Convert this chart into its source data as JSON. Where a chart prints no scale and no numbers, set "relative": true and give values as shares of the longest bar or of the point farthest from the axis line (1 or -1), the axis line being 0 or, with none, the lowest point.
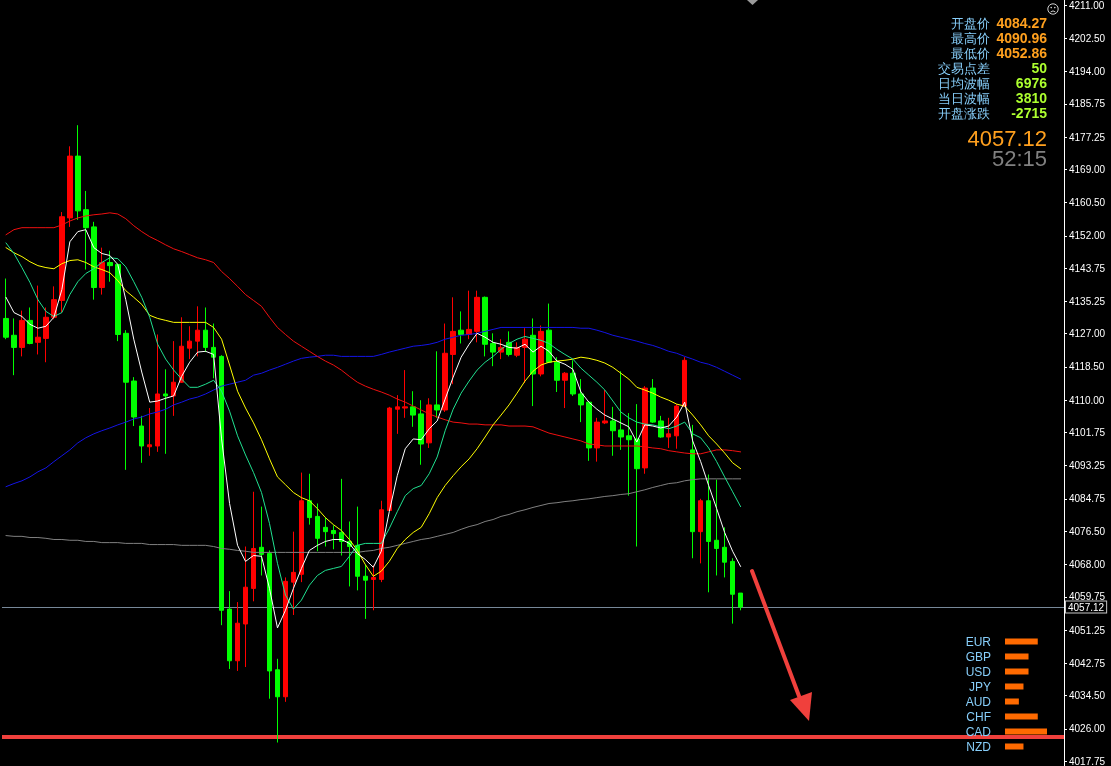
{
  "chart_data": [
    {
      "type": "candlestick",
      "categories": [
        null,
        null,
        null,
        null,
        null,
        null,
        null,
        null,
        null,
        null,
        null,
        null,
        null,
        null,
        null,
        null,
        null,
        null,
        null,
        null,
        null,
        null,
        null,
        null,
        null,
        null,
        null,
        null,
        null,
        null,
        null,
        null,
        null,
        null,
        null,
        null,
        null,
        null,
        null,
        null,
        null,
        null,
        null,
        null,
        null,
        null,
        null,
        null,
        null,
        null,
        null,
        null,
        null,
        null,
        null,
        null,
        null,
        null,
        null,
        null,
        null,
        null,
        null,
        null,
        null,
        null,
        null,
        null,
        null,
        null,
        null,
        null,
        null,
        null,
        null,
        null,
        null,
        null,
        null,
        null,
        null,
        null,
        null,
        null,
        null,
        null,
        null,
        null,
        null,
        null,
        null,
        null,
        null,
        null,
        null,
        null,
        null,
        null,
        null,
        null,
        null,
        null,
        null,
        null,
        null,
        null,
        null,
        null,
        null,
        null,
        null,
        null,
        null,
        null,
        null,
        null,
        null,
        null,
        null,
        null,
        null,
        null,
        null,
        null,
        null,
        null,
        null,
        null,
        null,
        null,
        null,
        null,
        null
      ],
      "series": [
        {
          "type": "line",
          "color": "#808080",
          "values": [
            4075.4,
            4075.2,
            4075.2,
            4074.9,
            4074.9,
            4074.7,
            4074.4,
            4074.4,
            4074.2,
            4074.2,
            4073.9,
            4073.9,
            4073.6,
            4073.6,
            4073.6,
            4073.4,
            4073.4,
            4073.4,
            4073.1,
            4073.1,
            4073.1,
            4073.1,
            4072.9,
            4072.9,
            4072.9,
            4072.9,
            4072.6,
            4072.1,
            4071.9,
            4071.6,
            4071.4,
            4071.1,
            4071.1,
            4071.1,
            4071.1,
            4071.1,
            4071.1,
            4071.1,
            4071.1,
            4071.1,
            4071.1,
            4071.1,
            4071.1,
            4071.1,
            4071.1,
            4071.4,
            4071.6,
            4072.1,
            4072.4,
            4072.9,
            4073.4,
            4073.9,
            4074.4,
            4074.7,
            4075.2,
            4075.7,
            4076.2,
            4077.0,
            4077.7,
            4078.2,
            4079.0,
            4079.5,
            4080.3,
            4080.8,
            4081.5,
            4082.0,
            4082.6,
            4083.1,
            4083.6,
            4083.8,
            4084.1,
            4084.3,
            4084.6,
            4084.8,
            4085.1,
            4085.4,
            4085.6,
            4085.9,
            4086.1,
            4086.6,
            4087.1,
            4087.7,
            4088.2,
            4088.7,
            4088.9,
            4089.4,
            4089.7,
            4089.9,
            4089.9,
            4089.9,
            4089.9,
            4089.9,
            4089.9,
            null,
            null,
            null,
            null,
            null,
            null,
            null,
            null,
            null,
            null,
            null,
            null,
            null,
            null,
            null,
            null,
            null,
            null,
            null,
            null,
            null,
            null,
            null,
            null,
            null,
            null,
            null,
            null,
            null,
            null,
            null,
            null,
            null,
            null,
            null,
            null,
            null,
            null,
            null,
            null
          ]
        },
        {
          "type": "line",
          "color": "#1414e6",
          "values": [
            4087.9,
            4088.7,
            4089.4,
            4090.4,
            4091.7,
            4092.7,
            4094.3,
            4095.8,
            4097.3,
            4099.1,
            4100.4,
            4101.4,
            4102.2,
            4102.9,
            4103.7,
            4104.4,
            4105.2,
            4105.7,
            4106.5,
            4107.0,
            4107.7,
            4108.8,
            4109.5,
            4110.3,
            4110.8,
            4111.6,
            4112.6,
            4113.6,
            4114.1,
            4114.6,
            4115.1,
            4116.4,
            4116.9,
            4117.7,
            4118.4,
            4119.2,
            4120.0,
            4120.7,
            4121.0,
            4121.2,
            4121.5,
            4121.5,
            4121.2,
            4121.2,
            4121.2,
            4121.2,
            4121.2,
            4121.7,
            4122.3,
            4122.8,
            4123.3,
            4123.8,
            4124.0,
            4124.3,
            4124.8,
            4125.6,
            4126.1,
            4126.6,
            4126.8,
            4127.1,
            4127.6,
            4128.1,
            4128.6,
            4128.6,
            4128.6,
            4128.6,
            4128.6,
            4128.6,
            4128.6,
            4128.6,
            4128.6,
            4128.6,
            4128.4,
            4128.4,
            4127.9,
            4127.3,
            4126.6,
            4126.1,
            4125.6,
            4125.1,
            4124.5,
            4124.0,
            4123.3,
            4122.5,
            4122.0,
            4121.2,
            4120.5,
            4119.7,
            4119.2,
            4118.4,
            4117.4,
            4116.4,
            4115.4,
            null,
            null,
            null,
            null,
            null,
            null,
            null,
            null,
            null,
            null,
            null,
            null,
            null,
            null,
            null,
            null,
            null,
            null,
            null,
            null,
            null,
            null,
            null,
            null,
            null,
            null,
            null,
            null,
            null,
            null,
            null,
            null,
            null,
            null,
            null,
            null,
            null,
            null,
            null,
            null
          ]
        },
        {
          "type": "line",
          "color": "#f01010",
          "values": [
            4152.3,
            4153.6,
            4154.1,
            4154.1,
            4154.1,
            4154.1,
            4154.1,
            4154.8,
            4155.8,
            4156.6,
            4157.1,
            4157.4,
            4157.6,
            4157.9,
            4157.6,
            4156.4,
            4154.6,
            4153.1,
            4151.8,
            4150.8,
            4149.7,
            4148.7,
            4148.0,
            4147.2,
            4146.4,
            4145.9,
            4145.2,
            4142.9,
            4141.1,
            4139.1,
            4137.0,
            4135.5,
            4134.0,
            4131.2,
            4128.6,
            4126.8,
            4125.1,
            4123.8,
            4122.5,
            4121.2,
            4120.0,
            4119.0,
            4117.7,
            4116.1,
            4114.6,
            4113.6,
            4112.8,
            4112.1,
            4111.3,
            4110.3,
            4109.5,
            4108.5,
            4107.5,
            4106.5,
            4105.7,
            4105.0,
            4104.4,
            4104.2,
            4103.9,
            4103.9,
            4103.7,
            4103.7,
            4103.7,
            4103.4,
            4103.4,
            4103.4,
            4103.2,
            4102.4,
            4101.6,
            4101.1,
            4100.6,
            4100.1,
            4099.6,
            4098.8,
            4098.6,
            4098.3,
            4098.3,
            4098.3,
            4098.3,
            4098.3,
            4098.1,
            4097.8,
            4097.6,
            4097.1,
            4096.8,
            4096.5,
            4096.3,
            4096.3,
            4096.8,
            4097.3,
            4097.3,
            4097.1,
            4096.8,
            null,
            null,
            null,
            null,
            null,
            null,
            null,
            null,
            null,
            null,
            null,
            null,
            null,
            null,
            null,
            null,
            null,
            null,
            null,
            null,
            null,
            null,
            null,
            null,
            null,
            null,
            null,
            null,
            null,
            null,
            null,
            null,
            null,
            null,
            null,
            null,
            null,
            null,
            null,
            null
          ]
        },
        {
          "type": "line",
          "color": "#ffff00",
          "values": [
            4149.0,
            4147.7,
            4146.7,
            4145.4,
            4144.4,
            4143.9,
            4143.6,
            4144.9,
            4145.7,
            4145.9,
            4145.2,
            4144.1,
            4143.4,
            4142.6,
            4140.6,
            4138.0,
            4136.3,
            4134.5,
            4131.7,
            4130.9,
            4130.4,
            4129.9,
            4129.9,
            4129.9,
            4129.9,
            4129.9,
            4128.6,
            4125.6,
            4119.0,
            4112.3,
            4108.0,
            4104.2,
            4099.9,
            4095.0,
            4090.4,
            4088.4,
            4086.4,
            4085.1,
            4084.3,
            4082.3,
            4080.0,
            4078.2,
            4076.7,
            4074.4,
            4071.6,
            4068.0,
            4065.0,
            4066.3,
            4068.8,
            4072.1,
            4074.4,
            4076.2,
            4077.5,
            4081.0,
            4085.1,
            4088.2,
            4090.7,
            4093.0,
            4095.0,
            4097.6,
            4100.6,
            4103.7,
            4106.2,
            4108.8,
            4111.8,
            4114.9,
            4117.4,
            4119.0,
            4119.7,
            4120.0,
            4120.2,
            4120.5,
            4121.0,
            4120.7,
            4120.2,
            4119.5,
            4118.4,
            4116.9,
            4115.4,
            4113.3,
            4112.6,
            4111.8,
            4110.8,
            4110.0,
            4109.0,
            4108.5,
            4106.2,
            4103.7,
            4100.9,
            4098.8,
            4096.5,
            4094.0,
            4092.5,
            null,
            null,
            null,
            null,
            null,
            null,
            null,
            null,
            null,
            null,
            null,
            null,
            null,
            null,
            null,
            null,
            null,
            null,
            null,
            null,
            null,
            null,
            null,
            null,
            null,
            null,
            null,
            null,
            null,
            null,
            null,
            null,
            null,
            null,
            null,
            null,
            null,
            null,
            null,
            null
          ]
        },
        {
          "type": "line",
          "color": "#20e090",
          "values": [
            4150.2,
            4147.5,
            4143.9,
            4140.1,
            4135.7,
            4132.7,
            4131.4,
            4132.4,
            4137.0,
            4140.3,
            4142.4,
            4143.6,
            4145.2,
            4146.4,
            4146.2,
            4144.1,
            4140.3,
            4136.3,
            4131.2,
            4124.3,
            4120.5,
            4117.7,
            4115.4,
            4113.3,
            4113.3,
            4114.1,
            4115.1,
            4112.3,
            4107.2,
            4100.9,
            4096.0,
            4091.5,
            4086.4,
            4078.5,
            4068.3,
            4060.2,
            4056.6,
            4058.9,
            4062.7,
            4065.2,
            4066.5,
            4067.0,
            4067.5,
            4070.1,
            4072.9,
            4073.4,
            4073.4,
            4073.4,
            4077.2,
            4081.5,
            4085.6,
            4087.4,
            4088.2,
            4091.2,
            4095.5,
            4102.2,
            4107.7,
            4111.8,
            4114.9,
            4117.7,
            4119.7,
            4121.2,
            4123.0,
            4124.5,
            4125.6,
            4126.3,
            4125.8,
            4125.3,
            4124.5,
            4123.0,
            4121.7,
            4120.5,
            4118.2,
            4116.4,
            4114.6,
            4112.6,
            4109.8,
            4107.0,
            4105.5,
            4104.4,
            4103.9,
            4103.7,
            4103.2,
            4102.7,
            4103.4,
            4104.4,
            4101.4,
            4100.4,
            4097.8,
            4094.3,
            4090.4,
            4086.6,
            4082.8,
            null,
            null,
            null,
            null,
            null,
            null,
            null,
            null,
            null,
            null,
            null,
            null,
            null,
            null,
            null,
            null,
            null,
            null,
            null,
            null,
            null,
            null,
            null,
            null,
            null,
            null,
            null,
            null,
            null,
            null,
            null,
            null,
            null,
            null,
            null,
            null,
            null,
            null,
            null,
            null
          ]
        },
        {
          "type": "line",
          "color": "#ffffff",
          "values": [
            4136.3,
            4132.4,
            4131.4,
            4129.4,
            4128.4,
            4128.9,
            4131.2,
            4138.3,
            4150.5,
            4153.1,
            4153.6,
            4149.0,
            4147.5,
            4147.0,
            4144.7,
            4135.7,
            4125.6,
            4117.2,
            4109.5,
            4109.8,
            4110.5,
            4111.1,
            4116.1,
            4119.7,
            4122.3,
            4122.5,
            4121.7,
            4100.1,
            4083.6,
            4072.9,
            4068.8,
            4070.3,
            4070.1,
            4061.9,
            4051.8,
            4056.3,
            4061.9,
            4067.0,
            4071.6,
            4072.9,
            4073.9,
            4074.4,
            4074.4,
            4073.4,
            4070.8,
            4069.3,
            4067.3,
            4071.4,
            4081.5,
            4090.7,
            4097.6,
            4100.1,
            4099.9,
            4102.7,
            4104.7,
            4110.3,
            4115.9,
            4121.0,
            4124.3,
            4127.1,
            4126.1,
            4124.8,
            4124.3,
            4123.5,
            4123.3,
            4124.3,
            4122.3,
            4123.8,
            4122.5,
            4120.0,
            4119.2,
            4117.9,
            4112.1,
            4109.5,
            4107.7,
            4106.2,
            4105.2,
            4104.2,
            4103.2,
            4099.3,
            4103.7,
            4103.4,
            4102.9,
            4103.4,
            4105.7,
            4109.5,
            4099.6,
            4094.3,
            4088.2,
            4082.3,
            4076.2,
            4071.4,
            4067.5,
            null,
            null,
            null,
            null,
            null,
            null,
            null,
            null,
            null,
            null,
            null,
            null,
            null,
            null,
            null,
            null,
            null,
            null,
            null,
            null,
            null,
            null,
            null,
            null,
            null,
            null,
            null,
            null,
            null,
            null,
            null,
            null,
            null,
            null,
            null,
            null,
            null,
            null,
            null,
            null
          ]
        },
        {
          "type": "candlestick",
          "ohlc": [
            [
              4130.9,
              4141.1,
              4125.6,
              4126.1
            ],
            [
              4126.6,
              4130.9,
              4116.4,
              4123.5
            ],
            [
              4123.5,
              4132.9,
              4121.2,
              4130.4
            ],
            [
              4130.4,
              4133.7,
              4124.3,
              4124.5
            ],
            [
              4124.8,
              4139.3,
              4121.7,
              4126.1
            ],
            [
              4125.8,
              4133.7,
              4119.7,
              4131.2
            ],
            [
              4131.2,
              4139.1,
              4130.7,
              4135.7
            ],
            [
              4135.5,
              4158.1,
              4132.4,
              4156.9
            ],
            [
              4156.6,
              4174.9,
              4154.3,
              4172.4
            ],
            [
              4172.4,
              4180.3,
              4156.1,
              4158.4
            ],
            [
              4158.7,
              4163.5,
              4143.4,
              4154.1
            ],
            [
              4154.3,
              4155.6,
              4135.7,
              4138.8
            ],
            [
              4138.8,
              4149.0,
              4137.0,
              4145.2
            ],
            [
              4145.2,
              4148.2,
              4140.3,
              4144.4
            ],
            [
              4144.7,
              4144.9,
              4125.1,
              4126.8
            ],
            [
              4127.1,
              4127.9,
              4092.2,
              4114.6
            ],
            [
              4114.9,
              4115.9,
              4103.4,
              4105.7
            ],
            [
              4103.4,
              4106.0,
              4094.0,
              4098.3
            ],
            [
              4098.1,
              4108.0,
              4095.8,
              4098.6
            ],
            [
              4098.3,
              4126.8,
              4096.8,
              4111.6
            ],
            [
              4111.6,
              4117.9,
              4096.3,
              4111.1
            ],
            [
              4111.1,
              4125.1,
              4106.0,
              4114.6
            ],
            [
              4114.6,
              4131.2,
              4114.4,
              4123.8
            ],
            [
              4123.3,
              4128.9,
              4120.5,
              4125.1
            ],
            [
              4125.1,
              4134.0,
              4121.2,
              4127.9
            ],
            [
              4127.9,
              4133.7,
              4122.3,
              4123.5
            ],
            [
              4123.5,
              4129.6,
              4115.6,
              4121.0
            ],
            [
              4121.2,
              4121.5,
              4052.5,
              4056.3
            ],
            [
              4056.6,
              4061.2,
              4041.3,
              4043.4
            ],
            [
              4043.4,
              4058.4,
              4040.8,
              4053.0
            ],
            [
              4052.8,
              4072.6,
              4041.8,
              4062.2
            ],
            [
              4061.9,
              4086.6,
              4058.6,
              4072.1
            ],
            [
              4072.4,
              4082.8,
              4065.2,
              4070.6
            ],
            [
              4070.8,
              4071.6,
              4033.7,
              4040.8
            ],
            [
              4041.1,
              4043.9,
              4022.5,
              4034.2
            ],
            [
              4034.2,
              4064.7,
              4032.9,
              4063.7
            ],
            [
              4063.5,
              4076.4,
              4055.1,
              4066.0
            ],
            [
              4065.5,
              4091.5,
              4063.5,
              4084.3
            ],
            [
              4084.3,
              4091.2,
              4078.2,
              4080.0
            ],
            [
              4080.3,
              4083.6,
              4071.4,
              4074.7
            ],
            [
              4077.5,
              4080.0,
              4072.6,
              4076.4
            ],
            [
              4076.7,
              4078.0,
              4071.9,
              4075.9
            ],
            [
              4076.2,
              4089.9,
              4070.3,
              4073.9
            ],
            [
              4073.9,
              4079.0,
              4062.4,
              4072.6
            ],
            [
              4072.9,
              4082.8,
              4061.4,
              4065.0
            ],
            [
              4065.0,
              4068.0,
              4054.1,
              4064.0
            ],
            [
              4064.2,
              4067.8,
              4056.3,
              4064.7
            ],
            [
              4064.2,
              4084.3,
              4063.5,
              4082.0
            ],
            [
              4081.8,
              4108.3,
              4081.8,
              4108.0
            ],
            [
              4107.7,
              4111.3,
              4101.4,
              4108.3
            ],
            [
              4108.0,
              4117.7,
              4105.5,
              4108.3
            ],
            [
              4108.3,
              4112.3,
              4103.2,
              4106.2
            ],
            [
              4106.5,
              4110.0,
              4093.5,
              4098.8
            ],
            [
              4099.1,
              4110.5,
              4097.8,
              4108.8
            ],
            [
              4108.8,
              4122.5,
              4105.5,
              4107.5
            ],
            [
              4107.5,
              4129.6,
              4107.0,
              4122.0
            ],
            [
              4121.7,
              4136.3,
              4114.1,
              4127.6
            ],
            [
              4127.9,
              4132.7,
              4124.5,
              4126.8
            ],
            [
              4126.8,
              4138.0,
              4125.6,
              4128.1
            ],
            [
              4127.6,
              4138.0,
              4124.8,
              4136.3
            ],
            [
              4136.3,
              4136.5,
              4121.2,
              4124.3
            ],
            [
              4124.5,
              4127.1,
              4118.7,
              4122.3
            ],
            [
              4122.3,
              4125.6,
              4120.5,
              4123.5
            ],
            [
              4124.8,
              4127.6,
              4121.2,
              4121.7
            ],
            [
              4121.5,
              4124.8,
              4121.0,
              4123.5
            ],
            [
              4123.5,
              4128.4,
              4114.4,
              4125.6
            ],
            [
              4126.6,
              4130.9,
              4108.5,
              4116.7
            ],
            [
              4116.7,
              4129.1,
              4116.1,
              4127.6
            ],
            [
              4127.9,
              4134.7,
              4119.5,
              4119.7
            ],
            [
              4119.7,
              4121.0,
              4112.1,
              4115.1
            ],
            [
              4115.1,
              4117.2,
              4108.0,
              4116.9
            ],
            [
              4116.9,
              4120.2,
              4111.1,
              4111.6
            ],
            [
              4111.6,
              4115.4,
              4104.4,
              4108.8
            ],
            [
              4109.5,
              4109.8,
              4094.5,
              4097.8
            ],
            [
              4097.8,
              4105.5,
              4094.3,
              4104.4
            ],
            [
              4104.2,
              4112.6,
              4103.9,
              4104.7
            ],
            [
              4104.7,
              4108.3,
              4095.8,
              4102.2
            ],
            [
              4102.4,
              4117.4,
              4097.3,
              4100.6
            ],
            [
              4100.9,
              4106.7,
              4085.6,
              4099.9
            ],
            [
              4100.1,
              4109.0,
              4072.6,
              4092.5
            ],
            [
              4092.7,
              4113.6,
              4091.2,
              4113.1
            ],
            [
              4113.1,
              4115.4,
              4104.2,
              4104.4
            ],
            [
              4104.7,
              4106.0,
              4100.4,
              4100.6
            ],
            [
              4100.6,
              4105.5,
              4097.8,
              4101.4
            ],
            [
              4100.9,
              4109.0,
              4097.6,
              4108.5
            ],
            [
              4108.5,
              4121.0,
              4108.3,
              4120.2
            ],
            [
              4097.3,
              4103.7,
              4069.6,
              4076.4
            ],
            [
              4076.4,
              4084.8,
              4068.3,
              4084.3
            ],
            [
              4084.3,
              4091.0,
              4060.9,
              4073.9
            ],
            [
              4074.2,
              4089.7,
              4065.2,
              4072.1
            ],
            [
              4072.4,
              4077.5,
              4064.7,
              4068.6
            ],
            [
              4068.8,
              4069.6,
              4052.9,
              4060.4
            ],
            [
              4060.7,
              4060.7,
              4056.3,
              4057.12
            ],
            null,
            null,
            null,
            null,
            null,
            null,
            null,
            null,
            null,
            null,
            null,
            null,
            null,
            null,
            null,
            null,
            null,
            null,
            null,
            null,
            null,
            null,
            null,
            null,
            null,
            null,
            null,
            null,
            null,
            null,
            null,
            null,
            null,
            null,
            null,
            null,
            null,
            null,
            null,
            null
          ],
          "colors": [
            "#00ff00",
            "#00ff00",
            "#ff0000",
            "#00ff00",
            "#ff0000",
            "#ff0000",
            "#ff0000",
            "#ff0000",
            "#ff0000",
            "#00ff00",
            "#00ff00",
            "#00ff00",
            "#ff0000",
            "#00ff00",
            "#00ff00",
            "#00ff00",
            "#00ff00",
            "#00ff00",
            "#ff0000",
            "#ff0000",
            "#00ff00",
            "#ff0000",
            "#ff0000",
            "#ff0000",
            "#ff0000",
            "#00ff00",
            "#00ff00",
            "#00ff00",
            "#00ff00",
            "#ff0000",
            "#ff0000",
            "#ff0000",
            "#00ff00",
            "#00ff00",
            "#00ff00",
            "#ff0000",
            "#ff0000",
            "#ff0000",
            "#00ff00",
            "#00ff00",
            "#00ff00",
            "#00ff00",
            "#00ff00",
            "#00ff00",
            "#00ff00",
            "#00ff00",
            "#ff0000",
            "#ff0000",
            "#ff0000",
            "#ff0000",
            "#ff0000",
            "#00ff00",
            "#00ff00",
            "#ff0000",
            "#00ff00",
            "#ff0000",
            "#ff0000",
            "#00ff00",
            "#ff0000",
            "#ff0000",
            "#00ff00",
            "#00ff00",
            "#ff0000",
            "#00ff00",
            "#ff0000",
            "#ff0000",
            "#00ff00",
            "#ff0000",
            "#00ff00",
            "#00ff00",
            "#ff0000",
            "#00ff00",
            "#00ff00",
            "#00ff00",
            "#ff0000",
            "#ff0000",
            "#00ff00",
            "#00ff00",
            "#00ff00",
            "#00ff00",
            "#ff0000",
            "#00ff00",
            "#00ff00",
            "#ff0000",
            "#ff0000",
            "#ff0000",
            "#00ff00",
            "#ff0000",
            "#00ff00",
            "#00ff00",
            "#00ff00",
            "#00ff00",
            "#00ff00",
            null,
            null,
            null,
            null,
            null,
            null,
            null,
            null,
            null,
            null,
            null,
            null,
            null,
            null,
            null,
            null,
            null,
            null,
            null,
            null,
            null,
            null,
            null,
            null,
            null,
            null,
            null,
            null,
            null,
            null,
            null,
            null,
            null,
            null,
            null,
            null,
            null,
            null,
            null,
            null
          ]
        }
      ],
      "ylim": [
        4016.5,
        4212.3
      ],
      "yticks": [
        {
          "value": 4211,
          "label": "4211.00"
        },
        {
          "value": 4202.5,
          "label": "4202.50"
        },
        {
          "value": 4194,
          "label": "4194.00"
        },
        {
          "value": 4185.75,
          "label": "4185.75"
        },
        {
          "value": 4177.25,
          "label": "4177.25"
        },
        {
          "value": 4169,
          "label": "4169.00"
        },
        {
          "value": 4160.5,
          "label": "4160.50"
        },
        {
          "value": 4152,
          "label": "4152.00"
        },
        {
          "value": 4143.75,
          "label": "4143.75"
        },
        {
          "value": 4135.25,
          "label": "4135.25"
        },
        {
          "value": 4127,
          "label": "4127.00"
        },
        {
          "value": 4118.5,
          "label": "4118.50"
        },
        {
          "value": 4110,
          "label": "4110.00"
        },
        {
          "value": 4101.75,
          "label": "4101.75"
        },
        {
          "value": 4093.25,
          "label": "4093.25"
        },
        {
          "value": 4084.75,
          "label": "4084.75"
        },
        {
          "value": 4076.5,
          "label": "4076.50"
        },
        {
          "value": 4068,
          "label": "4068.00"
        },
        {
          "value": 4059.75,
          "label": "4059.75"
        },
        {
          "value": 4051.25,
          "label": "4051.25"
        },
        {
          "value": 4042.75,
          "label": "4042.75"
        },
        {
          "value": 4034.5,
          "label": "4034.50"
        },
        {
          "value": 4026,
          "label": "4026.00"
        },
        {
          "value": 4017.75,
          "label": "4017.75"
        }
      ],
      "tick_labels": "y",
      "ref_lines": [
        {
          "axis": "y",
          "value": 4057.12,
          "label": "4057.12",
          "color": "#778899"
        },
        {
          "axis": "y",
          "value": 4024,
          "color": "#f0403c"
        }
      ],
      "annotations": [
        "开盘价",
        "4084.27",
        "最高价",
        "4090.96",
        "最低价",
        "4052.86",
        "交易点差",
        "50",
        "日均波幅",
        "6976",
        "当日波幅",
        "3810",
        "开盘涨跌",
        "-2715",
        "4057.12",
        "52:15"
      ]
    },
    {
      "type": "bar",
      "orientation": "horizontal",
      "relative": true,
      "categories": [
        "EUR",
        "GBP",
        "USD",
        "JPY",
        "AUD",
        "CHF",
        "CAD",
        "NZD"
      ],
      "values": [
        0.78,
        0.56,
        0.56,
        0.44,
        0.33,
        0.78,
        1,
        0.44
      ],
      "color": "#ff6a00"
    }
  ]
}
